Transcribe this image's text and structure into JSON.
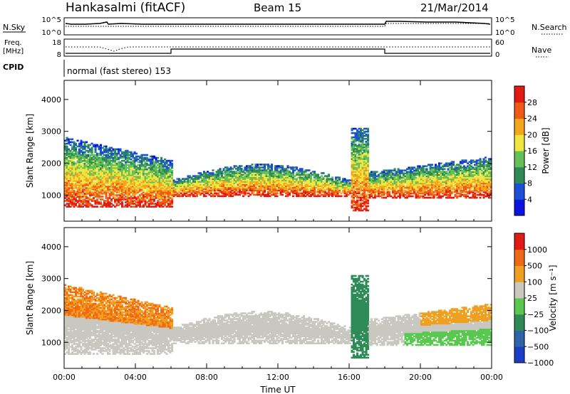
{
  "header": {
    "station": "Hankasalmi (fitACF)",
    "beam": "Beam 15",
    "date": "21/Mar/2014"
  },
  "top_panels": {
    "nsky_label": "N.Sky",
    "nsky_ticks": [
      "10^5",
      "10^0"
    ],
    "nsearch_label": "N.Search",
    "nsearch_ticks": [
      "10^5",
      "10^0"
    ],
    "freq_label_line1": "Freq.",
    "freq_label_line2": "[MHz]",
    "freq_ticks": [
      "18",
      "8"
    ],
    "nave_label": "Nave",
    "nave_ticks": [
      "60",
      "0"
    ],
    "cpid_label": "CPID",
    "cpid_text": "normal (fast stereo) 153"
  },
  "chart_data": [
    {
      "type": "heatmap",
      "panel": "power",
      "ylabel": "Slant Range [km]",
      "ylim": [
        180,
        4600
      ],
      "y_ticks": [
        1000,
        2000,
        3000,
        4000
      ],
      "x_ticks": [
        "00:00",
        "04:00",
        "08:00",
        "12:00",
        "16:00",
        "20:00",
        "00:00"
      ],
      "colorbar_label": "Power [dB]",
      "colorbar_ticks": [
        "28",
        "24",
        "20",
        "16",
        "12",
        "8",
        "4"
      ],
      "colors": [
        "#0a14e0",
        "#1b4fd6",
        "#2e8b57",
        "#66c05a",
        "#f0e640",
        "#f6a51f",
        "#ef5a14",
        "#e31a14"
      ]
    },
    {
      "type": "heatmap",
      "panel": "velocity",
      "ylabel": "Slant Range [km]",
      "ylim": [
        180,
        4600
      ],
      "y_ticks": [
        1000,
        2000,
        3000,
        4000
      ],
      "x_ticks": [
        "00:00",
        "04:00",
        "08:00",
        "12:00",
        "16:00",
        "20:00",
        "00:00"
      ],
      "xlabel": "Time UT",
      "colorbar_label": "Velocity [m s⁻¹]",
      "colorbar_ticks": [
        "1000",
        "500",
        "100",
        "25",
        "−25",
        "−100",
        "−500",
        "−1000"
      ],
      "colors": [
        "#1a3ec8",
        "#2e64a8",
        "#2e8b57",
        "#5ac850",
        "#c8c8c0",
        "#f0a020",
        "#ef6a14",
        "#e01a14"
      ]
    }
  ]
}
